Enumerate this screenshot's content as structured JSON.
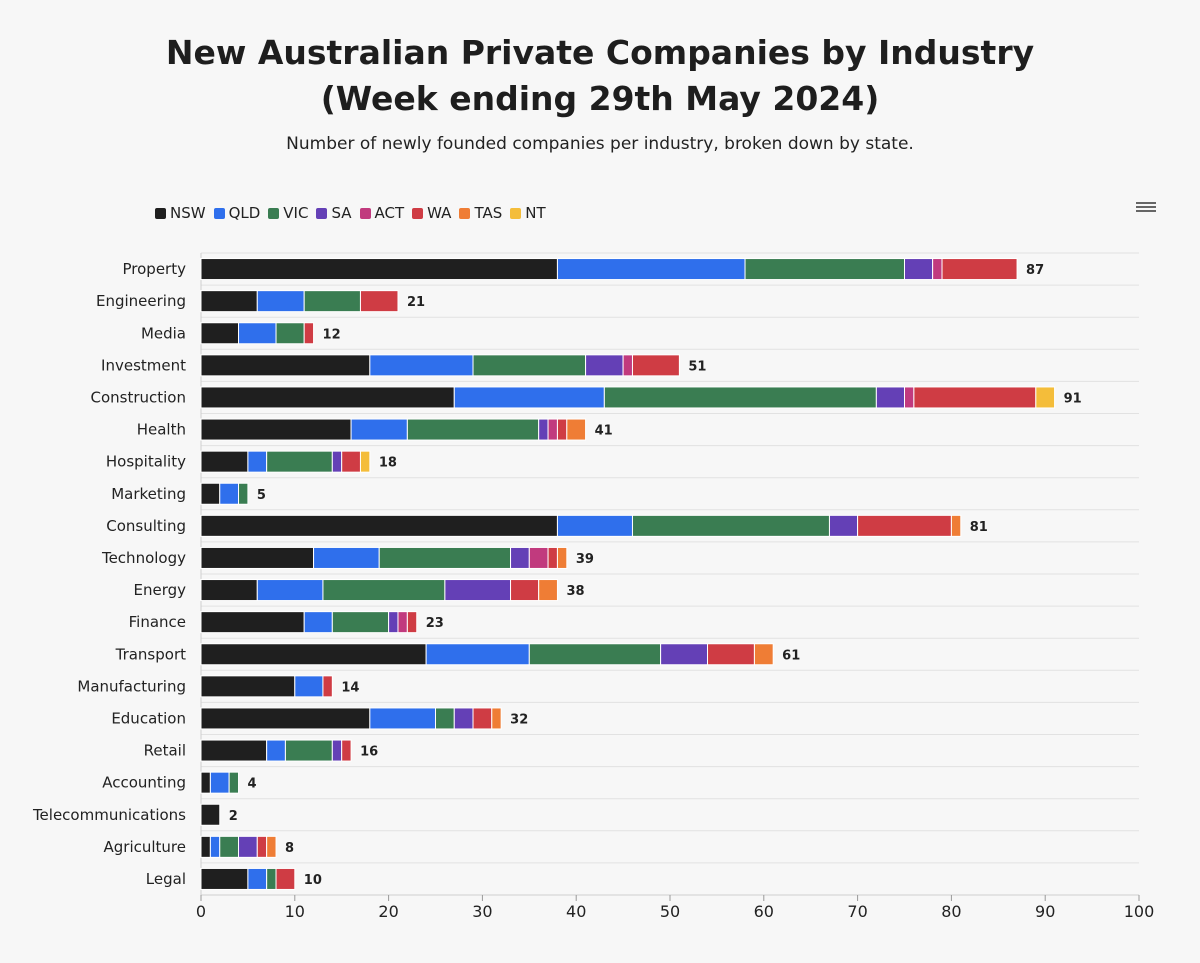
{
  "title_line1": "New Australian Private Companies by Industry",
  "title_line2": "(Week ending 29th May 2024)",
  "subtitle": "Number of newly founded companies per industry, broken down by state.",
  "menu_icon": "hamburger-menu-icon",
  "chart_data": {
    "type": "bar",
    "orientation": "horizontal",
    "stacked": true,
    "xlim": [
      0,
      100
    ],
    "xticks": [
      0,
      10,
      20,
      30,
      40,
      50,
      60,
      70,
      80,
      90,
      100
    ],
    "legend_position": "top-left",
    "grid": "horizontal",
    "categories": [
      "Property",
      "Engineering",
      "Media",
      "Investment",
      "Construction",
      "Health",
      "Hospitality",
      "Marketing",
      "Consulting",
      "Technology",
      "Energy",
      "Finance",
      "Transport",
      "Manufacturing",
      "Education",
      "Retail",
      "Accounting",
      "Telecommunications",
      "Agriculture",
      "Legal"
    ],
    "series": [
      {
        "name": "NSW",
        "color": "#1f1f1f",
        "values": [
          38,
          6,
          4,
          18,
          27,
          16,
          5,
          2,
          38,
          12,
          6,
          11,
          24,
          10,
          18,
          7,
          1,
          2,
          1,
          5
        ]
      },
      {
        "name": "QLD",
        "color": "#2f6fec",
        "values": [
          20,
          5,
          4,
          11,
          16,
          6,
          2,
          2,
          8,
          7,
          7,
          3,
          11,
          3,
          7,
          2,
          2,
          0,
          1,
          2
        ]
      },
      {
        "name": "VIC",
        "color": "#3a7d52",
        "values": [
          17,
          6,
          3,
          12,
          29,
          14,
          7,
          1,
          21,
          14,
          13,
          6,
          14,
          0,
          2,
          5,
          1,
          0,
          2,
          1
        ]
      },
      {
        "name": "SA",
        "color": "#6440b6",
        "values": [
          3,
          0,
          0,
          4,
          3,
          1,
          1,
          0,
          3,
          2,
          7,
          1,
          5,
          0,
          2,
          1,
          0,
          0,
          2,
          0
        ]
      },
      {
        "name": "ACT",
        "color": "#c13a7e",
        "values": [
          1,
          0,
          0,
          1,
          1,
          1,
          0,
          0,
          0,
          2,
          0,
          1,
          0,
          0,
          0,
          0,
          0,
          0,
          0,
          0
        ]
      },
      {
        "name": "WA",
        "color": "#cf3c44",
        "values": [
          8,
          4,
          1,
          5,
          13,
          1,
          2,
          0,
          10,
          1,
          3,
          1,
          5,
          1,
          2,
          1,
          0,
          0,
          1,
          2
        ]
      },
      {
        "name": "TAS",
        "color": "#ef7d35",
        "values": [
          0,
          0,
          0,
          0,
          0,
          2,
          0,
          0,
          1,
          1,
          2,
          0,
          2,
          0,
          1,
          0,
          0,
          0,
          1,
          0
        ]
      },
      {
        "name": "NT",
        "color": "#f4bd3a",
        "values": [
          0,
          0,
          0,
          0,
          2,
          0,
          1,
          0,
          0,
          0,
          0,
          0,
          0,
          0,
          0,
          0,
          0,
          0,
          0,
          0
        ]
      }
    ],
    "totals": [
      87,
      21,
      12,
      51,
      91,
      41,
      18,
      5,
      81,
      39,
      38,
      23,
      61,
      14,
      32,
      16,
      4,
      2,
      8,
      10
    ]
  }
}
